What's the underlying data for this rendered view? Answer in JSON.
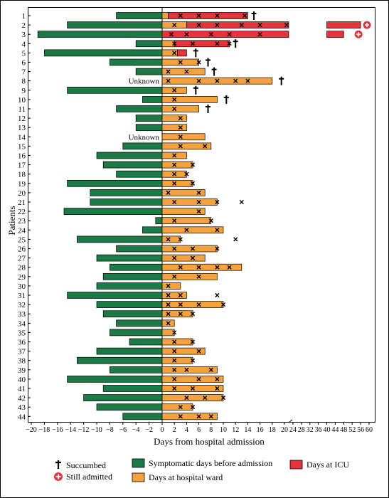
{
  "chart_data": {
    "type": "bar",
    "xlabel": "Days from hospital admission",
    "ylabel": "Patients",
    "x_axis": {
      "segments": [
        {
          "range": [
            -20,
            20
          ],
          "ticks": [
            -20,
            -18,
            -16,
            -14,
            -12,
            -10,
            -8,
            -6,
            -4,
            -2,
            0,
            2,
            4,
            6,
            8,
            10,
            12,
            14,
            16,
            18,
            20
          ]
        },
        {
          "range": [
            20,
            60
          ],
          "ticks": [
            24,
            28,
            32,
            36,
            40,
            44,
            48,
            52,
            56,
            60
          ]
        }
      ],
      "tick_labels": [
        "−20",
        "−18",
        "−16",
        "−14",
        "−12",
        "−10",
        "−8",
        "−6",
        "−4",
        "−2",
        "0",
        "2",
        "4",
        "6",
        "8",
        "10",
        "12",
        "14",
        "16",
        "18",
        "20",
        "24",
        "28",
        "32",
        "36",
        "40",
        "44",
        "48",
        "52",
        "56",
        "60"
      ]
    },
    "series_colors": {
      "symptomatic": "#1b7a45",
      "ward": "#f4a23f",
      "icu": "#e5343b"
    },
    "legend": {
      "succumbed": "Succumbed",
      "still_admitted": "Still admitted",
      "symptomatic": "Symptomatic days before admission",
      "ward": "Days at hospital ward",
      "icu": "Days at ICU"
    },
    "unknown_label": "Unknown",
    "patients": [
      {
        "id": "1",
        "symptomatic": 7,
        "ward": 1,
        "icu": 13,
        "marks": [
          3,
          6,
          9,
          13.5
        ],
        "succumbed": 15
      },
      {
        "id": "2",
        "symptomatic": 14.5,
        "ward": 4,
        "icu": 52,
        "marks": [
          2,
          6,
          9,
          13,
          16,
          21
        ],
        "still_admitted": 59
      },
      {
        "id": "3",
        "symptomatic": 19,
        "ward": 0,
        "icu": 48,
        "marks": [
          1.5,
          4,
          8,
          11,
          16
        ],
        "still_admitted": 55
      },
      {
        "id": "4",
        "symptomatic": 4,
        "ward": 2,
        "icu": 9,
        "marks": [
          2,
          5,
          9,
          11
        ],
        "succumbed": 12
      },
      {
        "id": "5",
        "symptomatic": 18,
        "ward": 2.5,
        "icu": 1.5,
        "marks": [
          2
        ],
        "succumbed": 5.5
      },
      {
        "id": "6",
        "symptomatic": 8,
        "ward": 6,
        "icu": 0,
        "marks": [
          3,
          6
        ],
        "succumbed": 7.5
      },
      {
        "id": "7",
        "symptomatic": 4,
        "ward": 7,
        "icu": 0,
        "marks": [
          1,
          4
        ],
        "succumbed": 8.5
      },
      {
        "id": "8",
        "symptomatic": null,
        "ward": 18,
        "icu": 0,
        "marks": [
          1,
          6,
          9,
          12,
          14
        ],
        "succumbed": 19.5
      },
      {
        "id": "9",
        "symptomatic": 14.5,
        "ward": 4,
        "icu": 0,
        "marks": [
          2
        ],
        "succumbed": 5.5
      },
      {
        "id": "10",
        "symptomatic": 3,
        "ward": 9,
        "icu": 0,
        "marks": [
          2
        ],
        "succumbed": 10.5
      },
      {
        "id": "11",
        "symptomatic": 7,
        "ward": 6,
        "icu": 0,
        "marks": [
          2
        ],
        "succumbed": 7.5
      },
      {
        "id": "12",
        "symptomatic": 4,
        "ward": 4,
        "icu": 0,
        "marks": [
          3
        ]
      },
      {
        "id": "13",
        "symptomatic": 4,
        "ward": 4,
        "icu": 0,
        "marks": [
          3
        ]
      },
      {
        "id": "14",
        "symptomatic": null,
        "ward": 7,
        "icu": 0,
        "marks": [
          3
        ]
      },
      {
        "id": "15",
        "symptomatic": 6,
        "ward": 8,
        "icu": 0,
        "marks": [
          3,
          7
        ]
      },
      {
        "id": "16",
        "symptomatic": 10,
        "ward": 4,
        "icu": 0,
        "marks": [
          2
        ]
      },
      {
        "id": "17",
        "symptomatic": 9,
        "ward": 5,
        "icu": 0,
        "marks": [
          2,
          5
        ]
      },
      {
        "id": "18",
        "symptomatic": 7,
        "ward": 4,
        "icu": 0,
        "marks": [
          2,
          4
        ]
      },
      {
        "id": "19",
        "symptomatic": 14.5,
        "ward": 5,
        "icu": 0,
        "marks": [
          2,
          5
        ]
      },
      {
        "id": "20",
        "symptomatic": 11,
        "ward": 7,
        "icu": 0,
        "marks": [
          1,
          6
        ]
      },
      {
        "id": "21",
        "symptomatic": 11,
        "ward": 9,
        "icu": 0,
        "marks": [
          2,
          6,
          9,
          13
        ]
      },
      {
        "id": "22",
        "symptomatic": 15,
        "ward": 7,
        "icu": 0,
        "marks": [
          6
        ]
      },
      {
        "id": "23",
        "symptomatic": 1,
        "ward": 8,
        "icu": 0,
        "marks": [
          2,
          8
        ]
      },
      {
        "id": "24",
        "symptomatic": 3,
        "ward": 10,
        "icu": 0,
        "marks": [
          4,
          9
        ]
      },
      {
        "id": "25",
        "symptomatic": 13,
        "ward": 3,
        "icu": 0,
        "marks": [
          1,
          3,
          12
        ]
      },
      {
        "id": "26",
        "symptomatic": 7,
        "ward": 9,
        "icu": 0,
        "marks": [
          2,
          5,
          9
        ]
      },
      {
        "id": "27",
        "symptomatic": 10,
        "ward": 7,
        "icu": 0,
        "marks": [
          2,
          5
        ]
      },
      {
        "id": "28",
        "symptomatic": 8,
        "ward": 13,
        "icu": 0,
        "marks": [
          3,
          6,
          9,
          11
        ]
      },
      {
        "id": "29",
        "symptomatic": 9,
        "ward": 9,
        "icu": 0,
        "marks": [
          2,
          6
        ]
      },
      {
        "id": "30",
        "symptomatic": 10,
        "ward": 3,
        "icu": 0,
        "marks": [
          1
        ]
      },
      {
        "id": "31",
        "symptomatic": 14.5,
        "ward": 4,
        "icu": 0,
        "marks": [
          1,
          3,
          9
        ]
      },
      {
        "id": "32",
        "symptomatic": 10,
        "ward": 10,
        "icu": 0,
        "marks": [
          1,
          3,
          6,
          10
        ]
      },
      {
        "id": "33",
        "symptomatic": 9,
        "ward": 5,
        "icu": 0,
        "marks": [
          1,
          3,
          5
        ]
      },
      {
        "id": "34",
        "symptomatic": 7,
        "ward": 2,
        "icu": 0,
        "marks": [
          1
        ]
      },
      {
        "id": "35",
        "symptomatic": 8,
        "ward": 2,
        "icu": 0,
        "marks": [
          2
        ]
      },
      {
        "id": "36",
        "symptomatic": 5,
        "ward": 5,
        "icu": 0,
        "marks": [
          2,
          5
        ]
      },
      {
        "id": "37",
        "symptomatic": 10,
        "ward": 7,
        "icu": 0,
        "marks": [
          2,
          6
        ]
      },
      {
        "id": "38",
        "symptomatic": 13,
        "ward": 5,
        "icu": 0,
        "marks": [
          2,
          5
        ]
      },
      {
        "id": "39",
        "symptomatic": 8,
        "ward": 9,
        "icu": 0,
        "marks": [
          2,
          4,
          8
        ]
      },
      {
        "id": "40",
        "symptomatic": 14.5,
        "ward": 10,
        "icu": 0,
        "marks": [
          2,
          6,
          9
        ]
      },
      {
        "id": "41",
        "symptomatic": 9,
        "ward": 10,
        "icu": 0,
        "marks": [
          2,
          5,
          9
        ]
      },
      {
        "id": "42",
        "symptomatic": 12,
        "ward": 10,
        "icu": 0,
        "marks": [
          4,
          7,
          10
        ]
      },
      {
        "id": "43",
        "symptomatic": 10,
        "ward": 5,
        "icu": 0,
        "marks": [
          3,
          5
        ]
      },
      {
        "id": "44",
        "symptomatic": 6,
        "ward": 9,
        "icu": 0,
        "marks": [
          3,
          6,
          8
        ]
      }
    ]
  }
}
